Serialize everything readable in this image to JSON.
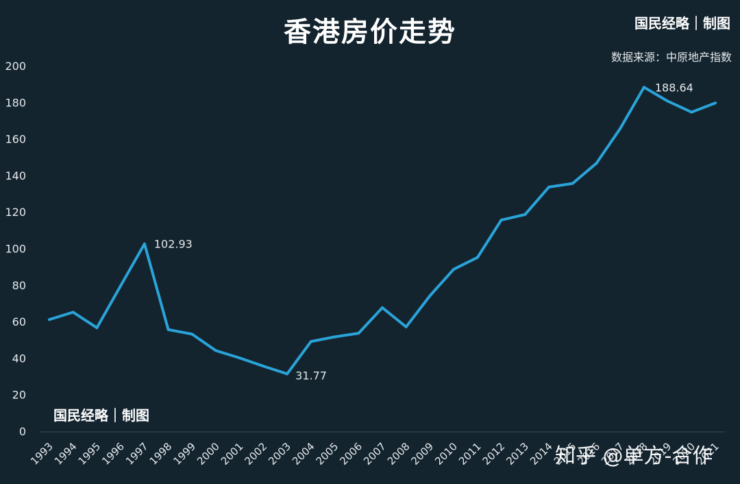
{
  "header": {
    "title": "香港房价走势",
    "brand": "国民经略｜制图",
    "source": "数据来源：中原地产指数"
  },
  "footer": {
    "brand": "国民经略｜制图",
    "watermark": "知乎 @单方-合作"
  },
  "colors": {
    "background": "#13242f",
    "line": "#2aa3d8",
    "text": "#e6e9ec"
  },
  "chart_data": {
    "type": "line",
    "title": "香港房价走势",
    "x": [
      "1993",
      "1994",
      "1995",
      "1996",
      "1997",
      "1998",
      "1999",
      "2000",
      "2001",
      "2002",
      "2003",
      "2004",
      "2005",
      "2006",
      "2007",
      "2008",
      "2009",
      "2010",
      "2011",
      "2012",
      "2013",
      "2014",
      "2015",
      "2016",
      "2017",
      "2018",
      "2019",
      "2020",
      "2021"
    ],
    "series": [
      {
        "values": [
          61.5,
          65.5,
          57,
          80,
          102.93,
          56,
          53.5,
          44.5,
          40.5,
          36,
          31.77,
          49.5,
          52,
          54,
          68,
          57.5,
          74.5,
          89,
          95.5,
          116,
          119,
          134,
          136,
          147,
          166,
          188.64,
          181,
          175,
          180
        ]
      }
    ],
    "annotations": [
      {
        "x": "1997",
        "label": "102.93"
      },
      {
        "x": "2003",
        "label": "31.77"
      },
      {
        "x": "2018",
        "label": "188.64"
      }
    ],
    "yticks": [
      0,
      20,
      40,
      60,
      80,
      100,
      120,
      140,
      160,
      180,
      200
    ],
    "ylim": [
      0,
      200
    ],
    "xlabel": "",
    "ylabel": "",
    "grid": false
  }
}
